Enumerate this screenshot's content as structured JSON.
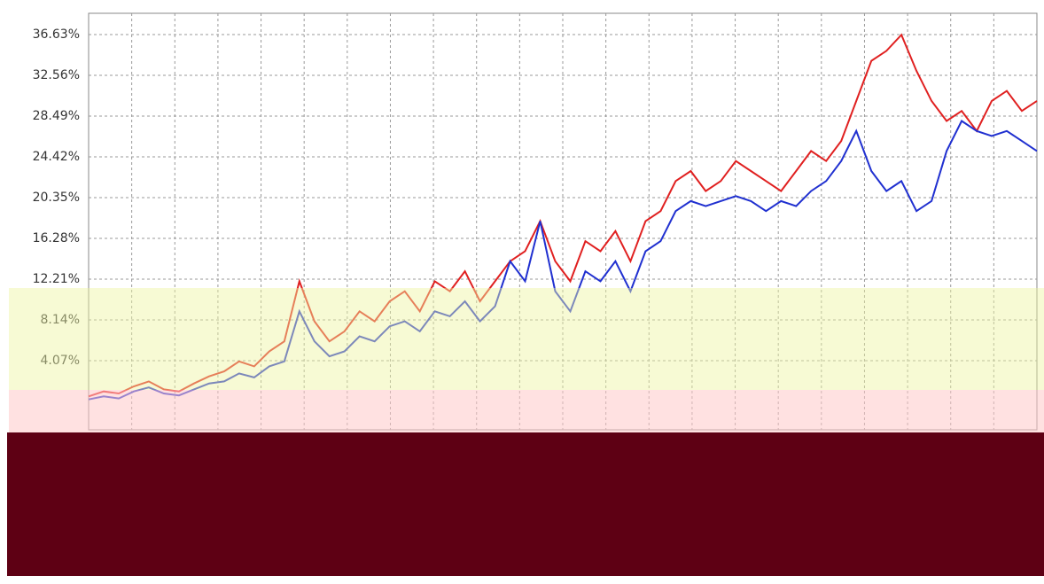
{
  "chart_data": {
    "type": "line",
    "ylim": [
      0,
      38.75
    ],
    "yticks": [
      {
        "value": 4.07,
        "label": "4.07%"
      },
      {
        "value": 8.14,
        "label": "8.14%"
      },
      {
        "value": 12.21,
        "label": "12.21%"
      },
      {
        "value": 16.28,
        "label": "16.28%"
      },
      {
        "value": 20.35,
        "label": "20.35%"
      },
      {
        "value": 24.42,
        "label": "24.42%"
      },
      {
        "value": 28.49,
        "label": "28.49%"
      },
      {
        "value": 32.56,
        "label": "32.56%"
      },
      {
        "value": 36.63,
        "label": "36.63%"
      }
    ],
    "grid": true,
    "series": [
      {
        "color": "#e02020",
        "values": [
          0.5,
          1,
          0.8,
          1.5,
          2,
          1.2,
          1,
          1.8,
          2.5,
          3,
          4,
          3.5,
          5,
          6,
          12,
          8,
          6,
          7,
          9,
          8,
          10,
          11,
          9,
          12,
          11,
          13,
          10,
          12,
          14,
          15,
          18,
          14,
          12,
          16,
          15,
          17,
          14,
          18,
          19,
          22,
          23,
          21,
          22,
          24,
          23,
          22,
          21,
          23,
          25,
          24,
          26,
          30,
          34,
          35,
          36.6,
          33,
          30,
          28,
          29,
          27,
          30,
          31,
          29,
          30
        ]
      },
      {
        "color": "#2030d0",
        "values": [
          0.2,
          0.5,
          0.3,
          1,
          1.4,
          0.8,
          0.6,
          1.2,
          1.8,
          2,
          2.8,
          2.4,
          3.5,
          4,
          9,
          6,
          4.5,
          5,
          6.5,
          6,
          7.5,
          8,
          7,
          9,
          8.5,
          10,
          8,
          9.5,
          14,
          12,
          18,
          11,
          9,
          13,
          12,
          14,
          11,
          15,
          16,
          19,
          20,
          19.5,
          20,
          20.5,
          20,
          19,
          20,
          19.5,
          21,
          22,
          24,
          27,
          23,
          21,
          22,
          19,
          20,
          25,
          28,
          27,
          26.5,
          27,
          26,
          25
        ]
      }
    ]
  }
}
